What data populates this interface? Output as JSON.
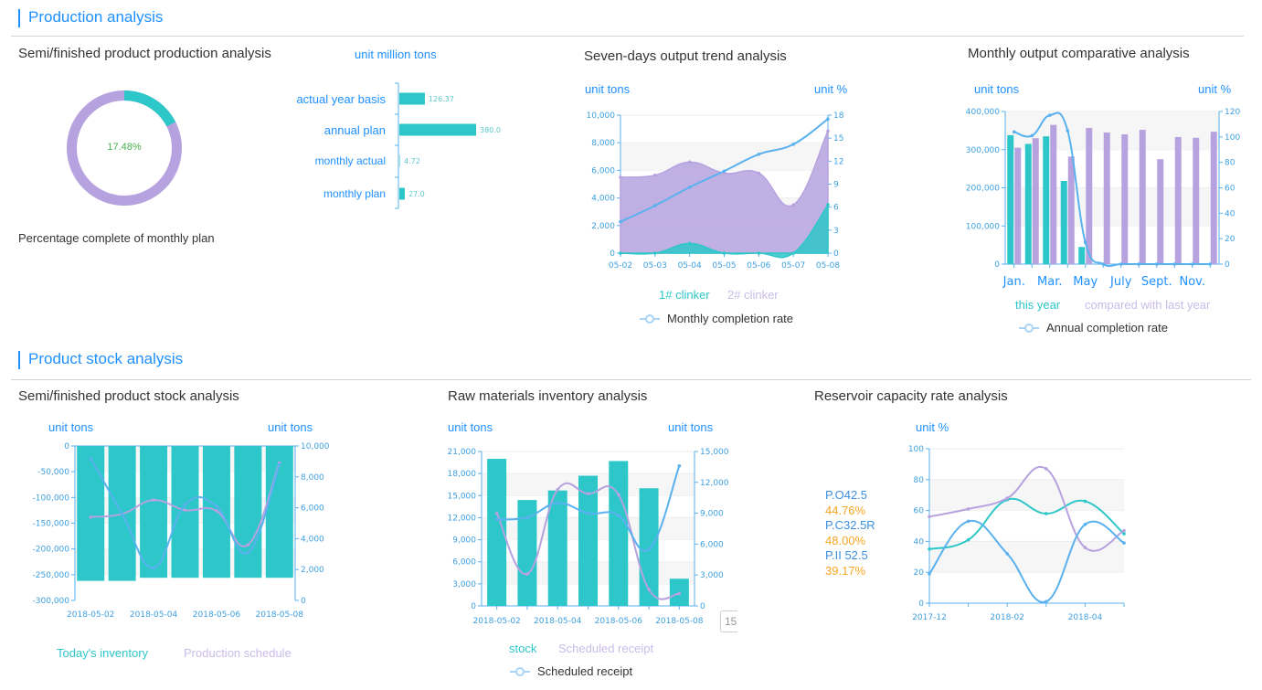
{
  "sections": {
    "production": "Production analysis",
    "stock": "Product stock analysis"
  },
  "colors": {
    "accent": "#1e90ff",
    "teal": "#2ec7c9",
    "purple": "#b6a2de",
    "line_blue": "#5ab1ef",
    "percent_orange": "#f5a623",
    "percent_green": "#4caf50"
  },
  "tooltip_fragment": "15",
  "chart_data": [
    {
      "type": "pie",
      "title": "Semi/finished product production analysis",
      "center_label": "17.48%",
      "caption": "Percentage complete of monthly plan",
      "value": 17.48
    },
    {
      "type": "bar",
      "orientation": "horizontal",
      "unit": "unit million tons",
      "categories": [
        "actual year basis",
        "annual plan",
        "monthly actual",
        "monthly plan"
      ],
      "values": [
        126.37,
        380.0,
        4.72,
        27.0
      ],
      "value_labels": [
        "126.37",
        "380.0",
        "4.72",
        "27.0"
      ]
    },
    {
      "type": "area",
      "title": "Seven-days output trend analysis",
      "unit_left": "unit tons",
      "unit_right": "unit %",
      "categories": [
        "05-02",
        "05-03",
        "05-04",
        "05-05",
        "05-06",
        "05-07",
        "05-08"
      ],
      "ylim": [
        0,
        10000
      ],
      "yticks": [
        0,
        2000,
        4000,
        6000,
        8000,
        10000
      ],
      "ylim_right": [
        0,
        18
      ],
      "yticks_right": [
        0,
        3,
        6,
        9,
        12,
        15,
        18
      ],
      "grid": true,
      "series": [
        {
          "name": "2# clinker",
          "kind": "area",
          "axis": "left",
          "color": "#b6a2de",
          "values": [
            5500,
            5650,
            6600,
            5800,
            5800,
            3500,
            8850
          ]
        },
        {
          "name": "1# clinker",
          "kind": "area",
          "axis": "left",
          "color": "#2ec7c9",
          "values": [
            0,
            0,
            700,
            0,
            0,
            0,
            3500
          ]
        },
        {
          "name": "Monthly completion rate",
          "kind": "line",
          "axis": "right",
          "color": "#5ab1ef",
          "values": [
            4.1,
            6.2,
            8.6,
            10.7,
            12.9,
            14.2,
            17.5
          ]
        }
      ]
    },
    {
      "type": "bar",
      "title": "Monthly output comparative analysis",
      "unit_left": "unit tons",
      "unit_right": "unit %",
      "categories": [
        "Jan.",
        "",
        "Mar.",
        "",
        "May",
        "",
        "July",
        "",
        "Sept.",
        "",
        "Nov.",
        ""
      ],
      "ylim": [
        0,
        400000
      ],
      "yticks": [
        0,
        100000,
        200000,
        300000,
        400000
      ],
      "ylim_right": [
        0,
        120
      ],
      "yticks_right": [
        0,
        20,
        40,
        60,
        80,
        100,
        120
      ],
      "grid": true,
      "series": [
        {
          "name": "this year",
          "kind": "bar",
          "axis": "left",
          "color": "#2ec7c9",
          "values": [
            338000,
            315000,
            335000,
            218000,
            45000,
            null,
            null,
            null,
            null,
            null,
            null,
            null
          ]
        },
        {
          "name": "compared with last year",
          "kind": "bar",
          "axis": "left",
          "color": "#b6a2de",
          "values": [
            305000,
            330000,
            365000,
            282000,
            357000,
            345000,
            340000,
            352000,
            275000,
            333000,
            331000,
            347000
          ]
        },
        {
          "name": "Annual completion rate",
          "kind": "line",
          "axis": "right",
          "color": "#5ab1ef",
          "values": [
            104,
            101,
            117,
            105,
            17,
            0,
            0,
            0,
            0,
            0,
            0,
            0
          ]
        }
      ]
    },
    {
      "type": "bar",
      "title": "Semi/finished product stock analysis",
      "unit_left": "unit tons",
      "unit_right": "unit tons",
      "categories": [
        "2018-05-02",
        "",
        "2018-05-04",
        "",
        "2018-05-06",
        "",
        "2018-05-08"
      ],
      "ylim": [
        -300000,
        0
      ],
      "yticks": [
        -300000,
        -250000,
        -200000,
        -150000,
        -100000,
        -50000,
        0
      ],
      "ylim_right": [
        0,
        10000
      ],
      "yticks_right": [
        0,
        2000,
        4000,
        6000,
        8000,
        10000
      ],
      "grid": true,
      "series": [
        {
          "name": "Today's inventory",
          "kind": "bar",
          "axis": "left",
          "color": "#2ec7c9",
          "values": [
            -262000,
            -262000,
            -256000,
            -256000,
            -256000,
            -256000,
            -256000
          ]
        },
        {
          "name": "Production schedule",
          "kind": "line",
          "axis": "right",
          "color": "#b6a2de",
          "values": [
            5400,
            5600,
            6500,
            5850,
            5800,
            3600,
            8900
          ]
        },
        {
          "kind": "line",
          "axis": "right",
          "color": "#5ab1ef",
          "values": [
            9200,
            5600,
            2100,
            6200,
            6100,
            3100,
            8800
          ]
        }
      ]
    },
    {
      "type": "bar",
      "title": "Raw materials inventory analysis",
      "unit_left": "unit tons",
      "unit_right": "unit tons",
      "categories": [
        "2018-05-02",
        "",
        "2018-05-04",
        "",
        "2018-05-06",
        "",
        "2018-05-08"
      ],
      "ylim": [
        0,
        21000
      ],
      "yticks": [
        0,
        3000,
        6000,
        9000,
        12000,
        15000,
        18000,
        21000
      ],
      "ylim_right": [
        0,
        15000
      ],
      "yticks_right": [
        0,
        3000,
        6000,
        9000,
        12000,
        15000
      ],
      "grid": true,
      "series": [
        {
          "name": "stock",
          "kind": "bar",
          "axis": "left",
          "color": "#2ec7c9",
          "values": [
            20000,
            14400,
            15700,
            17700,
            19700,
            16000,
            3700
          ]
        },
        {
          "name": "Scheduled receipt",
          "kind": "line",
          "axis": "right",
          "color": "#b6a2de",
          "values": [
            9000,
            3100,
            11300,
            10900,
            10800,
            1600,
            1200
          ]
        },
        {
          "name": "Scheduled receipt",
          "kind": "line",
          "axis": "right",
          "color": "#5ab1ef",
          "values": [
            8400,
            8600,
            10000,
            9000,
            8800,
            5500,
            13600
          ]
        }
      ]
    },
    {
      "type": "line",
      "title": "Reservoir capacity rate analysis",
      "unit_left": "unit %",
      "categories": [
        "2017-12",
        "",
        "2018-02",
        "",
        "2018-04",
        ""
      ],
      "ylim": [
        0,
        100
      ],
      "yticks": [
        0,
        20,
        40,
        60,
        80,
        100
      ],
      "grid": true,
      "labels": [
        {
          "name": "P.O42.5",
          "value": "44.76%"
        },
        {
          "name": "P.C32.5R",
          "value": "48.00%"
        },
        {
          "name": "P.II 52.5",
          "value": "39.17%"
        }
      ],
      "series": [
        {
          "kind": "line",
          "axis": "left",
          "color": "#2ec7c9",
          "values": [
            35,
            41,
            67,
            58,
            66,
            45
          ]
        },
        {
          "kind": "line",
          "axis": "left",
          "color": "#b6a2de",
          "values": [
            56,
            61,
            68,
            87,
            36,
            47
          ]
        },
        {
          "kind": "line",
          "axis": "left",
          "color": "#5ab1ef",
          "values": [
            19,
            53,
            32,
            1,
            51,
            39
          ]
        }
      ]
    }
  ]
}
